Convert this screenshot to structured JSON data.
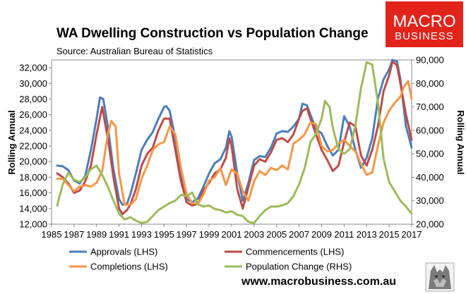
{
  "chart_data": {
    "type": "line",
    "title": "WA Dwelling Construction vs Population Change",
    "subtitle": "Source: Australian Bureau of Statistics",
    "ylabel_left": "Rolling Annual",
    "ylabel_right": "Rolling Annual",
    "xlim": [
      1985,
      2017
    ],
    "ylim_left": [
      12000,
      33000
    ],
    "ylim_right": [
      20000,
      90000
    ],
    "x_ticks": [
      1985,
      1987,
      1989,
      1991,
      1993,
      1995,
      1997,
      1999,
      2001,
      2003,
      2005,
      2007,
      2009,
      2011,
      2013,
      2015,
      2017
    ],
    "x_tick_labels": [
      "1985",
      "1987",
      "1989",
      "1991",
      "1993",
      "1995",
      "1997",
      "1999",
      "2001",
      "2003",
      "2005",
      "2007",
      "2009",
      "2011",
      "2013",
      "2015",
      "2017"
    ],
    "y_ticks_left": [
      12000,
      14000,
      16000,
      18000,
      20000,
      22000,
      24000,
      26000,
      28000,
      30000,
      32000
    ],
    "y_tick_labels_left": [
      "12,000",
      "14,000",
      "16,000",
      "18,000",
      "20,000",
      "22,000",
      "24,000",
      "26,000",
      "28,000",
      "30,000",
      "32,000"
    ],
    "y_ticks_right": [
      20000,
      30000,
      40000,
      50000,
      60000,
      70000,
      80000,
      90000
    ],
    "y_tick_labels_right": [
      "20,000",
      "30,000",
      "40,000",
      "50,000",
      "60,000",
      "70,000",
      "80,000",
      "90,000"
    ],
    "grid": false,
    "legend_position": "bottom",
    "series": [
      {
        "name": "Approvals (LHS)",
        "axis": "left",
        "color": "#4a7ebb",
        "x": [
          1985.5,
          1986,
          1986.5,
          1987,
          1987.5,
          1988,
          1988.5,
          1989,
          1989.3,
          1989.6,
          1990,
          1990.5,
          1991,
          1991.3,
          1991.7,
          1992,
          1992.5,
          1993,
          1993.5,
          1994,
          1994.5,
          1995,
          1995.2,
          1995.5,
          1996,
          1996.5,
          1997,
          1997.5,
          1998,
          1998.5,
          1999,
          1999.5,
          2000,
          2000.5,
          2000.8,
          2001,
          2001.5,
          2002,
          2002.5,
          2003,
          2003.5,
          2004,
          2004.5,
          2005,
          2005.5,
          2006,
          2006.5,
          2007,
          2007.3,
          2007.7,
          2008,
          2008.5,
          2009,
          2009.5,
          2010,
          2010.5,
          2011,
          2011.5,
          2012,
          2012.5,
          2013,
          2013.5,
          2014,
          2014.5,
          2015,
          2015.3,
          2015.7,
          2016,
          2016.5,
          2017
        ],
        "y": [
          19500,
          19400,
          18900,
          17600,
          17200,
          18200,
          21500,
          25500,
          28200,
          28000,
          24500,
          19000,
          15200,
          14500,
          14600,
          15800,
          18500,
          21500,
          22800,
          23800,
          25500,
          27000,
          27100,
          26500,
          23000,
          18500,
          15200,
          14800,
          15300,
          16800,
          18500,
          19800,
          20300,
          21800,
          23900,
          23200,
          18500,
          15000,
          17300,
          20200,
          20700,
          20600,
          21800,
          23600,
          23900,
          23800,
          24500,
          25500,
          27400,
          27200,
          26000,
          24200,
          23600,
          22000,
          20800,
          21500,
          25800,
          24500,
          21500,
          19200,
          20500,
          23000,
          28000,
          30500,
          31800,
          33000,
          32800,
          30500,
          24500,
          21800
        ]
      },
      {
        "name": "Commencements (LHS)",
        "axis": "left",
        "color": "#be4b48",
        "x": [
          1985.5,
          1986,
          1986.5,
          1987,
          1987.5,
          1988,
          1988.5,
          1989,
          1989.5,
          1990,
          1990.5,
          1991,
          1991.3,
          1991.7,
          1992,
          1992.5,
          1993,
          1993.5,
          1994,
          1994.5,
          1995,
          1995.5,
          1996,
          1996.5,
          1997,
          1997.5,
          1998,
          1998.5,
          1999,
          1999.5,
          2000,
          2000.5,
          2000.8,
          2001,
          2001.5,
          2002,
          2002.5,
          2003,
          2003.5,
          2004,
          2004.5,
          2005,
          2005.5,
          2006,
          2006.5,
          2007,
          2007.3,
          2007.7,
          2008,
          2008.5,
          2009,
          2009.5,
          2010,
          2010.5,
          2011,
          2011.5,
          2012,
          2012.5,
          2013,
          2013.5,
          2014,
          2014.5,
          2015,
          2015.3,
          2015.7,
          2016,
          2016.5,
          2017
        ],
        "y": [
          18500,
          18000,
          17200,
          16000,
          16300,
          17500,
          19500,
          23500,
          27000,
          23000,
          18000,
          14000,
          13300,
          13800,
          14500,
          16500,
          19500,
          21000,
          21800,
          24000,
          25500,
          25500,
          21500,
          17500,
          14800,
          14400,
          14600,
          16300,
          17300,
          18500,
          19000,
          20500,
          23000,
          22000,
          16500,
          14000,
          16800,
          19500,
          20300,
          20000,
          21200,
          22800,
          23000,
          22500,
          23500,
          25500,
          26500,
          26800,
          25500,
          23500,
          21500,
          20200,
          18800,
          19500,
          22500,
          25000,
          24500,
          20800,
          19500,
          21500,
          24500,
          29000,
          31000,
          32800,
          32300,
          30000,
          26000,
          22800
        ]
      },
      {
        "name": "Completions (LHS)",
        "axis": "left",
        "color": "#f79646",
        "x": [
          1985.5,
          1986,
          1986.5,
          1987,
          1987.5,
          1988,
          1988.5,
          1989,
          1989.5,
          1990,
          1990.3,
          1990.7,
          1991,
          1991.5,
          1992,
          1992.5,
          1993,
          1993.5,
          1994,
          1994.5,
          1995,
          1995.5,
          1996,
          1996.5,
          1997,
          1997.5,
          1998,
          1998.5,
          1999,
          1999.5,
          2000,
          2000.5,
          2001,
          2001.5,
          2002,
          2002.5,
          2003,
          2003.5,
          2004,
          2004.5,
          2005,
          2005.5,
          2006,
          2006.5,
          2007,
          2007.5,
          2008,
          2008.5,
          2009,
          2009.5,
          2010,
          2010.5,
          2011,
          2011.5,
          2012,
          2012.5,
          2013,
          2013.5,
          2014,
          2014.5,
          2015,
          2015.5,
          2016,
          2016.3,
          2016.7,
          2017
        ],
        "y": [
          17800,
          17800,
          17000,
          16200,
          16800,
          17000,
          16800,
          17300,
          18800,
          23500,
          25200,
          24500,
          18500,
          14500,
          14500,
          15200,
          17800,
          19500,
          21500,
          22200,
          22500,
          24500,
          23500,
          19200,
          15800,
          14700,
          14600,
          15800,
          17600,
          18000,
          19200,
          17000,
          19000,
          18500,
          16200,
          15000,
          17500,
          18800,
          18300,
          19200,
          18900,
          19500,
          19000,
          22300,
          22800,
          23500,
          25000,
          24800,
          22000,
          21300,
          21500,
          22300,
          22800,
          22000,
          21300,
          19700,
          18300,
          18600,
          22000,
          25000,
          26500,
          27500,
          28300,
          29500,
          30300,
          28000
        ]
      },
      {
        "name": "Population Change (RHS)",
        "axis": "right",
        "color": "#9bbb59",
        "x": [
          1985.5,
          1986,
          1986.5,
          1987,
          1987.5,
          1988,
          1988.5,
          1989,
          1989.5,
          1990,
          1990.5,
          1991,
          1991.5,
          1992,
          1992.5,
          1993,
          1993.5,
          1994,
          1994.5,
          1995,
          1995.5,
          1996,
          1996.5,
          1997,
          1997.5,
          1998,
          1998.5,
          1999,
          1999.5,
          2000,
          2000.5,
          2001,
          2001.5,
          2002,
          2002.5,
          2003,
          2003.5,
          2004,
          2004.5,
          2005,
          2005.5,
          2006,
          2006.5,
          2007,
          2007.5,
          2008,
          2008.5,
          2009,
          2009.3,
          2009.7,
          2010,
          2010.5,
          2011,
          2011.5,
          2012,
          2012.5,
          2013,
          2013.5,
          2014,
          2014.5,
          2015,
          2015.5,
          2016,
          2016.5,
          2017
        ],
        "y": [
          28000,
          37000,
          42000,
          39000,
          38000,
          40000,
          43500,
          45000,
          41000,
          36000,
          30000,
          24500,
          22000,
          23000,
          21500,
          20500,
          21000,
          23500,
          26000,
          27500,
          29000,
          30000,
          32500,
          32000,
          33500,
          28500,
          27500,
          28000,
          26500,
          26000,
          25000,
          25500,
          24000,
          23500,
          21000,
          20500,
          23500,
          26000,
          27500,
          27500,
          28000,
          29000,
          32000,
          37000,
          44000,
          55000,
          58500,
          65000,
          72500,
          70000,
          61000,
          52000,
          50000,
          52000,
          62000,
          78000,
          89000,
          88000,
          72000,
          48000,
          38000,
          34000,
          30000,
          27500,
          24500
        ]
      }
    ],
    "legend": [
      {
        "label": "Approvals (LHS)",
        "color": "#4a7ebb"
      },
      {
        "label": "Commencements (LHS)",
        "color": "#be4b48"
      },
      {
        "label": "Completions (LHS)",
        "color": "#f79646"
      },
      {
        "label": "Population Change (RHS)",
        "color": "#9bbb59"
      }
    ]
  },
  "branding": {
    "logo_line1": "MACRO",
    "logo_line2": "BUSINESS",
    "logo_bg": "#e2231a",
    "footer_url": "www.macrobusiness.com.au",
    "mascot": "wolf-head-icon"
  }
}
